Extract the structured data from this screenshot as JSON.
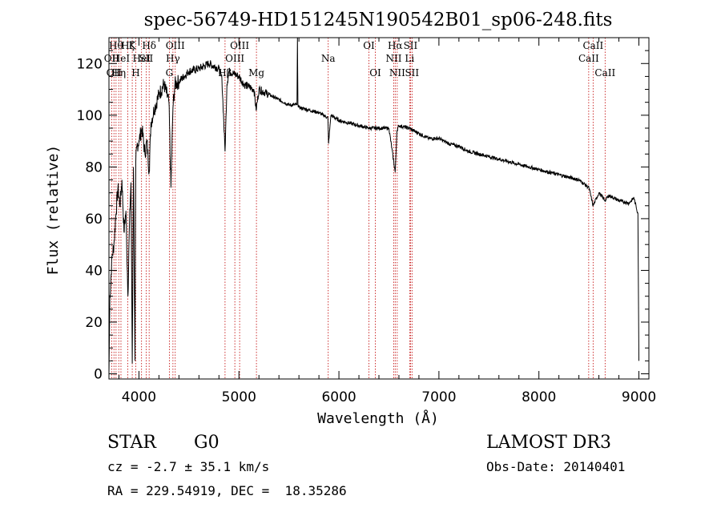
{
  "chart_data": {
    "type": "line",
    "title": "spec-56749-HD151245N190542B01_sp06-248.fits",
    "xlabel": "Wavelength (Å)",
    "ylabel": "Flux (relative)",
    "xlim": [
      3700,
      9100
    ],
    "ylim": [
      -2,
      130
    ],
    "xticks": [
      4000,
      5000,
      6000,
      7000,
      8000,
      9000
    ],
    "xtick_labels": [
      "4000",
      "5000",
      "6000",
      "7000",
      "8000",
      "9000"
    ],
    "yticks": [
      0,
      20,
      40,
      60,
      80,
      100,
      120
    ],
    "ytick_labels": [
      "0",
      "20",
      "40",
      "60",
      "80",
      "100",
      "120"
    ],
    "series": [
      {
        "name": "flux",
        "x": [
          3700,
          3710,
          3730,
          3750,
          3770,
          3790,
          3810,
          3830,
          3850,
          3870,
          3890,
          3905,
          3920,
          3933,
          3945,
          3960,
          3968,
          3980,
          4000,
          4030,
          4060,
          4080,
          4102,
          4120,
          4150,
          4200,
          4250,
          4300,
          4320,
          4340,
          4360,
          4400,
          4450,
          4500,
          4600,
          4700,
          4800,
          4830,
          4861,
          4880,
          4900,
          4950,
          5000,
          5050,
          5100,
          5150,
          5172,
          5200,
          5300,
          5400,
          5500,
          5580,
          5585,
          5590,
          5600,
          5700,
          5800,
          5890,
          5896,
          5920,
          6000,
          6100,
          6200,
          6300,
          6400,
          6500,
          6563,
          6580,
          6600,
          6700,
          6800,
          6900,
          7000,
          7100,
          7200,
          7300,
          7400,
          7500,
          7600,
          7700,
          7800,
          7900,
          8000,
          8100,
          8200,
          8300,
          8400,
          8500,
          8542,
          8600,
          8662,
          8700,
          8800,
          8900,
          8950,
          8990,
          9000
        ],
        "values": [
          0,
          30,
          45,
          50,
          62,
          72,
          65,
          75,
          55,
          63,
          30,
          58,
          74,
          4,
          80,
          5,
          82,
          88,
          90,
          95,
          85,
          90,
          78,
          97,
          102,
          108,
          112,
          105,
          72,
          103,
          112,
          113,
          115,
          117,
          118,
          120,
          118,
          114,
          86,
          112,
          117,
          116,
          115,
          112,
          111,
          110,
          102,
          110,
          108,
          106,
          104,
          104,
          130,
          104,
          103,
          102,
          101,
          99,
          89,
          100,
          98,
          97,
          96,
          95,
          95,
          95,
          78,
          94,
          96,
          95,
          93,
          91,
          91,
          89,
          88,
          86,
          85,
          84,
          83,
          82,
          81,
          80,
          79,
          78,
          77,
          76,
          75,
          72,
          65,
          70,
          67,
          69,
          67,
          66,
          68,
          62,
          5
        ]
      }
    ],
    "line_markers": [
      {
        "x": 3727,
        "label": "OII",
        "row": 2
      },
      {
        "x": 3750,
        "label": "OII",
        "row": 3
      },
      {
        "x": 3771,
        "label": "Hθ",
        "row": 1
      },
      {
        "x": 3798,
        "label": "Hη",
        "row": 3
      },
      {
        "x": 3820,
        "label": "HeI",
        "row": 2
      },
      {
        "x": 3889,
        "label": "Hζ",
        "row": 1
      },
      {
        "x": 3933,
        "label": "K",
        "row": 1
      },
      {
        "x": 3968,
        "label": "H",
        "row": 3
      },
      {
        "x": 4026,
        "label": "HeI",
        "row": 2
      },
      {
        "x": 4072,
        "label": "SII",
        "row": 2
      },
      {
        "x": 4102,
        "label": "Hδ",
        "row": 1
      },
      {
        "x": 4304,
        "label": "G",
        "row": 3
      },
      {
        "x": 4340,
        "label": "Hγ",
        "row": 2
      },
      {
        "x": 4363,
        "label": "OIII",
        "row": 1
      },
      {
        "x": 4861,
        "label": "Hβ",
        "row": 3
      },
      {
        "x": 4959,
        "label": "OIII",
        "row": 2
      },
      {
        "x": 5007,
        "label": "OIII",
        "row": 1
      },
      {
        "x": 5175,
        "label": "Mg",
        "row": 3
      },
      {
        "x": 5893,
        "label": "Na",
        "row": 2
      },
      {
        "x": 6300,
        "label": "OI",
        "row": 1
      },
      {
        "x": 6364,
        "label": "OI",
        "row": 3
      },
      {
        "x": 6548,
        "label": "NII",
        "row": 2
      },
      {
        "x": 6563,
        "label": "Hα",
        "row": 1
      },
      {
        "x": 6583,
        "label": "NII",
        "row": 3
      },
      {
        "x": 6707,
        "label": "Li",
        "row": 2
      },
      {
        "x": 6716,
        "label": "SII",
        "row": 1
      },
      {
        "x": 6731,
        "label": "SII",
        "row": 3
      },
      {
        "x": 8498,
        "label": "CaII",
        "row": 2
      },
      {
        "x": 8542,
        "label": "CaII",
        "row": 1
      },
      {
        "x": 8662,
        "label": "CaII",
        "row": 3
      }
    ]
  },
  "footer": {
    "object_class": "STAR",
    "subclass": "G0",
    "survey": "LAMOST DR3",
    "redshift": "cz = -2.7 ± 35.1 km/s",
    "obs_date": "Obs-Date: 20140401",
    "coords": "RA = 229.54919, DEC =  18.35286"
  },
  "colors": {
    "spectrum": "#000000",
    "marker": "#c00000",
    "axis": "#000000"
  }
}
